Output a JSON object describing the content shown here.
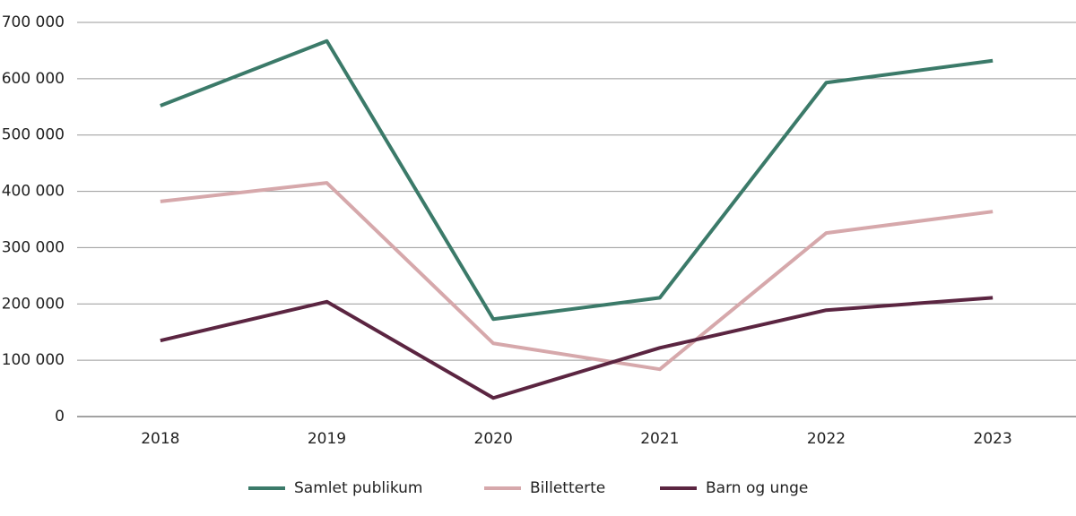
{
  "chart_data": {
    "type": "line",
    "categories": [
      "2018",
      "2019",
      "2020",
      "2021",
      "2022",
      "2023"
    ],
    "series": [
      {
        "name": "Samlet publikum",
        "color": "#3b7a69",
        "values": [
          552000,
          667000,
          173000,
          211000,
          593000,
          632000
        ]
      },
      {
        "name": "Billetterte",
        "color": "#d6a8ab",
        "values": [
          382000,
          415000,
          130000,
          84000,
          326000,
          364000
        ]
      },
      {
        "name": "Barn og unge",
        "color": "#5b2541",
        "values": [
          135000,
          204000,
          33000,
          122000,
          189000,
          211000
        ]
      }
    ],
    "ylim": [
      0,
      700000
    ],
    "yticks": [
      0,
      {
        "value": 100000,
        "label": "100 000"
      },
      {
        "value": 200000,
        "label": "200 000"
      },
      {
        "value": 300000,
        "label": "300 000"
      },
      {
        "value": 400000,
        "label": "400 000"
      },
      {
        "value": 500000,
        "label": "500 000"
      },
      {
        "value": 600000,
        "label": "600 000"
      },
      {
        "value": 700000,
        "label": "700 000"
      }
    ],
    "grid": true,
    "legend": "bottom"
  }
}
